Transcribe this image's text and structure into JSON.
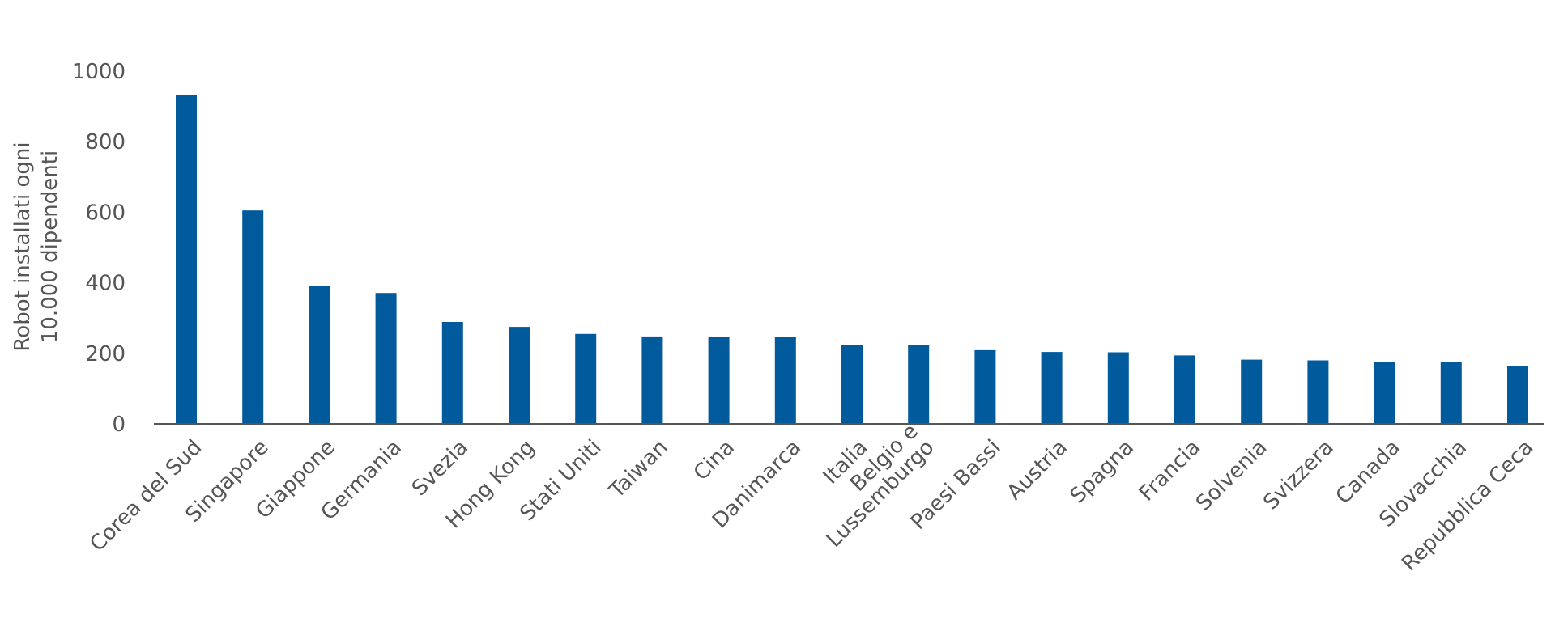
{
  "chart_data": {
    "type": "bar",
    "title": "",
    "ylabel_lines": [
      "Robot installati ogni",
      "10.000 dipendenti"
    ],
    "xlabel": "",
    "ylim": [
      0,
      1000
    ],
    "yticks": [
      0,
      200,
      400,
      600,
      800,
      1000
    ],
    "grid": false,
    "legend": "none",
    "bar_color": "#005a9c",
    "categories": [
      "Corea del Sud",
      "Singapore",
      "Giappone",
      "Germania",
      "Svezia",
      "Hong Kong",
      "Stati Uniti",
      "Taiwan",
      "Cina",
      "Danimarca",
      "Italia",
      "Belgio e Lussemburgo",
      "Paesi Bassi",
      "Austria",
      "Spagna",
      "Francia",
      "Solvenia",
      "Svizzera",
      "Canada",
      "Slovacchia",
      "Repubblica Ceca"
    ],
    "category_label_lines": [
      [
        "Corea del Sud"
      ],
      [
        "Singapore"
      ],
      [
        "Giappone"
      ],
      [
        "Germania"
      ],
      [
        "Svezia"
      ],
      [
        "Hong Kong"
      ],
      [
        "Stati Uniti"
      ],
      [
        "Taiwan"
      ],
      [
        "Cina"
      ],
      [
        "Danimarca"
      ],
      [
        "Italia"
      ],
      [
        "Belgio e",
        "Lussemburgo"
      ],
      [
        "Paesi Bassi"
      ],
      [
        "Austria"
      ],
      [
        "Spagna"
      ],
      [
        "Francia"
      ],
      [
        "Solvenia"
      ],
      [
        "Svizzera"
      ],
      [
        "Canada"
      ],
      [
        "Slovacchia"
      ],
      [
        "Repubblica Ceca"
      ]
    ],
    "values": [
      932,
      605,
      390,
      371,
      289,
      275,
      255,
      248,
      246,
      246,
      224,
      223,
      209,
      204,
      203,
      194,
      182,
      180,
      176,
      175,
      163
    ]
  }
}
